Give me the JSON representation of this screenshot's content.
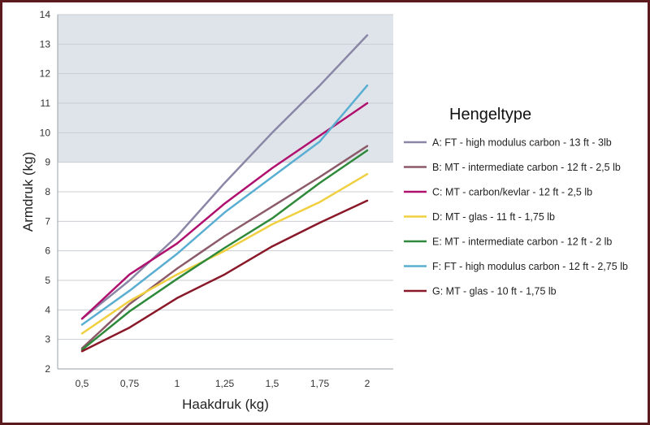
{
  "chart_data": {
    "type": "line",
    "title": "",
    "xlabel": "Haakdruk (kg)",
    "ylabel": "Armdruk (kg)",
    "x": [
      "0,5",
      "0,75",
      "1",
      "1,25",
      "1,5",
      "1,75",
      "2"
    ],
    "ylim": [
      2,
      14
    ],
    "yticks": [
      2,
      3,
      4,
      5,
      6,
      7,
      8,
      9,
      10,
      11,
      12,
      13,
      14
    ],
    "shaded_band": [
      9,
      14
    ],
    "grid": true,
    "legend_title": "Hengeltype",
    "legend_position": "right",
    "series": [
      {
        "name": "A: FT - high modulus carbon - 13 ft - 3lb",
        "color": "#8a86a6",
        "values": [
          3.7,
          5.0,
          6.5,
          8.3,
          10.0,
          11.6,
          13.3
        ]
      },
      {
        "name": "B: MT - intermediate carbon - 12 ft - 2,5 lb",
        "color": "#8c5a68",
        "values": [
          2.7,
          4.2,
          5.4,
          6.5,
          7.5,
          8.5,
          9.55
        ]
      },
      {
        "name": "C: MT - carbon/kevlar - 12 ft - 2,5 lb",
        "color": "#b0106e",
        "values": [
          3.7,
          5.2,
          6.25,
          7.6,
          8.8,
          9.9,
          11.0
        ]
      },
      {
        "name": "D: MT - glas - 11 ft - 1,75 lb",
        "color": "#f0d040",
        "values": [
          3.2,
          4.3,
          5.2,
          6.0,
          6.9,
          7.65,
          8.6
        ]
      },
      {
        "name": "E: MT - intermediate carbon - 12 ft - 2 lb",
        "color": "#2e8a3a",
        "values": [
          2.65,
          3.95,
          5.05,
          6.1,
          7.1,
          8.3,
          9.4
        ]
      },
      {
        "name": "F: FT - high modulus carbon - 12 ft - 2,75 lb",
        "color": "#5aaed2",
        "values": [
          3.5,
          4.65,
          5.9,
          7.3,
          8.5,
          9.7,
          11.6
        ]
      },
      {
        "name": "G: MT - glas - 10 ft - 1,75 lb",
        "color": "#8a1828",
        "values": [
          2.6,
          3.4,
          4.4,
          5.2,
          6.15,
          6.95,
          7.7
        ]
      }
    ]
  }
}
